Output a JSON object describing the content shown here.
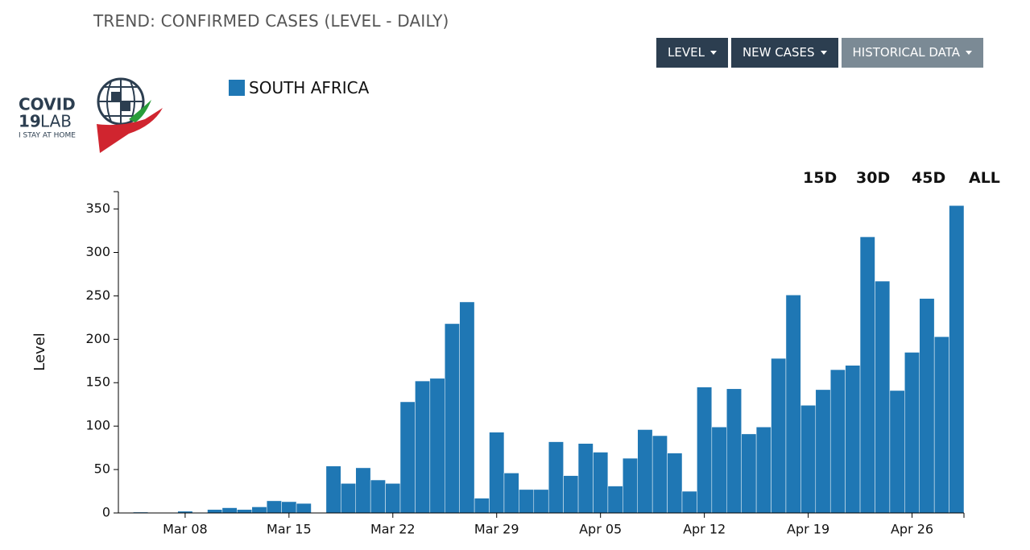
{
  "header": {
    "title": "TREND: CONFIRMED CASES (LEVEL - DAILY)",
    "buttons": [
      "LEVEL",
      "NEW CASES",
      "HISTORICAL DATA"
    ],
    "logo": {
      "line1": "COVID",
      "number": "19",
      "word": "LAB",
      "tagline": "I STAY AT HOME"
    }
  },
  "ranges": [
    "15D",
    "30D",
    "45D",
    "ALL"
  ],
  "chart_data": {
    "type": "bar",
    "ylabel": "Level",
    "categories": [
      null,
      null,
      null,
      null,
      "Mar 08",
      null,
      null,
      null,
      null,
      null,
      null,
      "Mar 15",
      null,
      null,
      null,
      null,
      null,
      null,
      "Mar 22",
      null,
      null,
      null,
      null,
      null,
      null,
      "Mar 29",
      null,
      null,
      null,
      null,
      null,
      null,
      "Apr 05",
      null,
      null,
      null,
      null,
      null,
      null,
      "Apr 12",
      null,
      null,
      null,
      null,
      null,
      null,
      "Apr 19",
      null,
      null,
      null,
      null,
      null,
      null,
      "Apr 26",
      null,
      null,
      null
    ],
    "series": [
      {
        "name": "SOUTH AFRICA",
        "color": "#1f77b4",
        "values": [
          0,
          1,
          0,
          0,
          2,
          0,
          4,
          6,
          4,
          7,
          14,
          13,
          11,
          0,
          54,
          34,
          52,
          38,
          34,
          128,
          152,
          155,
          218,
          243,
          17,
          93,
          46,
          27,
          27,
          82,
          43,
          80,
          70,
          31,
          63,
          96,
          89,
          69,
          25,
          145,
          99,
          143,
          91,
          99,
          178,
          251,
          124,
          142,
          165,
          170,
          318,
          267,
          141,
          185,
          247,
          203,
          354
        ]
      }
    ],
    "ylim": [
      0,
      370
    ],
    "yticks": [
      0,
      50,
      100,
      150,
      200,
      250,
      300,
      350
    ]
  }
}
